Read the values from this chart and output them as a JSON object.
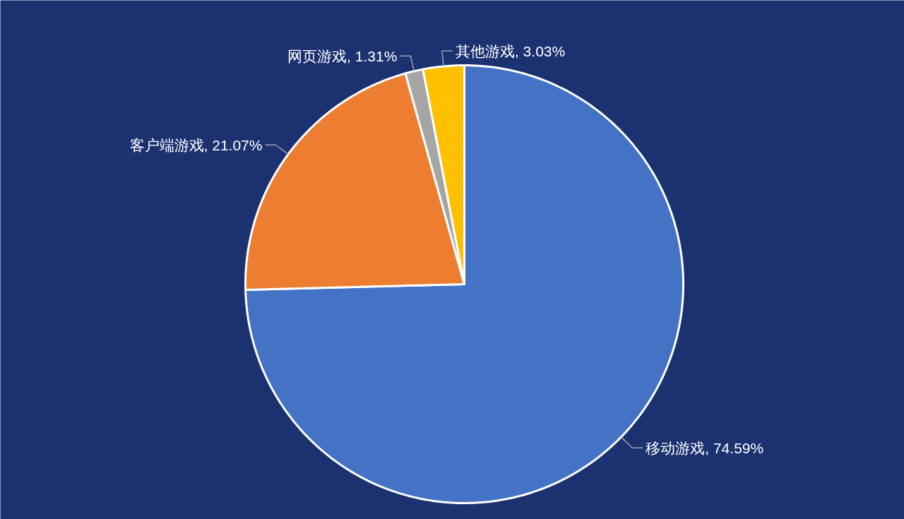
{
  "chart_data": {
    "type": "pie",
    "categories": [
      "移动游戏",
      "客户端游戏",
      "网页游戏",
      "其他游戏"
    ],
    "values": [
      74.59,
      21.07,
      1.31,
      3.03
    ],
    "value_labels": [
      "74.59%",
      "21.07%",
      "1.31%",
      "3.03%"
    ],
    "colors": [
      "#4472c4",
      "#ed7d31",
      "#a5a5a5",
      "#ffc000"
    ]
  }
}
